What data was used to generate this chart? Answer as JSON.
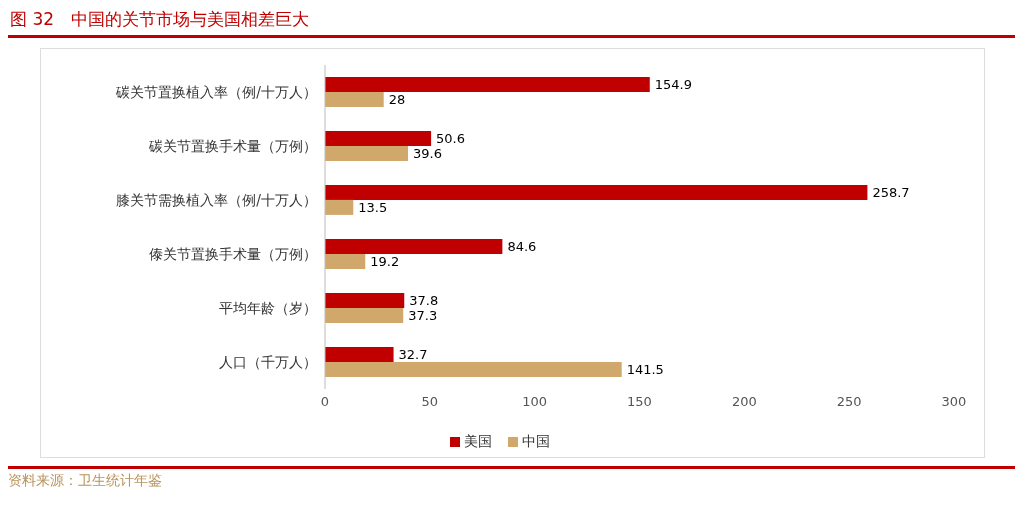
{
  "chart_data": {
    "type": "bar",
    "orientation": "horizontal",
    "title": "图 32　中国的关节市场与美国相差巨大",
    "categories": [
      "碳关节置换植入率（例/十万人）",
      "碳关节置换手术量（万例）",
      "膝关节需换植入率（例/十万人）",
      "傣关节置换手术量（万例）",
      "平均年龄（岁）",
      "人口（千万人）"
    ],
    "series": [
      {
        "name": "美国",
        "color": "#c00000",
        "values": [
          154.9,
          50.6,
          258.7,
          84.6,
          37.8,
          32.7
        ]
      },
      {
        "name": "中国",
        "color": "#d0a86c",
        "values": [
          28,
          39.6,
          13.5,
          19.2,
          37.3,
          141.5
        ]
      }
    ],
    "xlim": [
      0,
      300
    ],
    "xticks": [
      0,
      50,
      100,
      150,
      200,
      250,
      300
    ],
    "grid": false,
    "legend": "bottom",
    "data_labels": true,
    "annotations": [
      "资料来源：卫生统计年鉴"
    ]
  }
}
